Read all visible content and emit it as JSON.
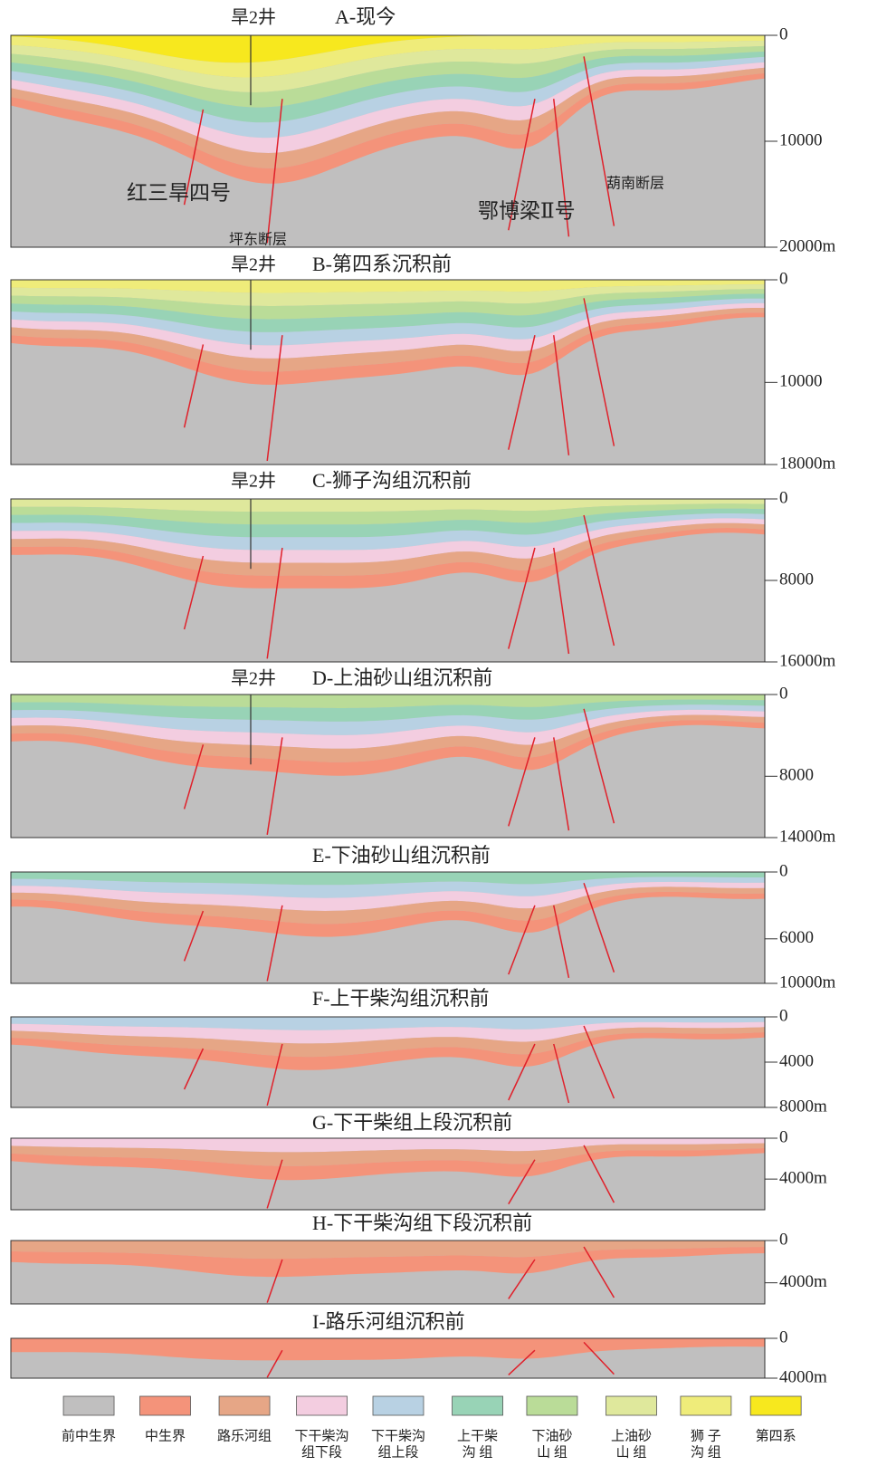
{
  "panels": [
    {
      "title": "A-现今",
      "well": "旱2井",
      "depth_range": [
        0,
        20000
      ],
      "depth_ticks": [
        0,
        10000,
        {
          "value": 20000,
          "label": "20000m"
        }
      ],
      "labels": [
        "红三旱四号",
        "坪东断层",
        "鄂博梁Ⅱ号",
        "葫南断层"
      ]
    },
    {
      "title": "B-第四系沉积前",
      "well": "旱2井",
      "depth_range": [
        0,
        18000
      ],
      "depth_ticks": [
        0,
        10000,
        {
          "value": 18000,
          "label": "18000m"
        }
      ]
    },
    {
      "title": "C-狮子沟组沉积前",
      "well": "旱2井",
      "depth_range": [
        0,
        16000
      ],
      "depth_ticks": [
        0,
        8000,
        {
          "value": 16000,
          "label": "16000m"
        }
      ]
    },
    {
      "title": "D-上油砂山组沉积前",
      "well": "旱2井",
      "depth_range": [
        0,
        14000
      ],
      "depth_ticks": [
        0,
        8000,
        {
          "value": 14000,
          "label": "14000m"
        }
      ]
    },
    {
      "title": "E-下油砂山组沉积前",
      "depth_range": [
        0,
        10000
      ],
      "depth_ticks": [
        0,
        6000,
        {
          "value": 10000,
          "label": "10000m"
        }
      ]
    },
    {
      "title": "F-上干柴沟组沉积前",
      "depth_range": [
        0,
        8000
      ],
      "depth_ticks": [
        0,
        4000,
        {
          "value": 8000,
          "label": "8000m"
        }
      ]
    },
    {
      "title": "G-下干柴组上段沉积前",
      "depth_range": [
        0,
        7000
      ],
      "depth_ticks": [
        0,
        {
          "value": 4000,
          "label": "4000m"
        }
      ]
    },
    {
      "title": "H-下干柴沟组下段沉积前",
      "depth_range": [
        0,
        6000
      ],
      "depth_ticks": [
        0,
        {
          "value": 4000,
          "label": "4000m"
        }
      ]
    },
    {
      "title": "I-路乐河组沉积前",
      "depth_range": [
        0,
        4000
      ],
      "depth_ticks": [
        0,
        {
          "value": 4000,
          "label": "4000m"
        }
      ]
    }
  ],
  "legend": [
    {
      "name": [
        "前中生界"
      ],
      "color": "#c0bfbf"
    },
    {
      "name": [
        "中生界"
      ],
      "color": "#f4937a"
    },
    {
      "name": [
        "路乐河组"
      ],
      "color": "#e6a686"
    },
    {
      "name": [
        "下干柴沟",
        "组下段"
      ],
      "color": "#f3cde0"
    },
    {
      "name": [
        "下干柴沟",
        "组上段"
      ],
      "color": "#b8d1e3"
    },
    {
      "name": [
        "上干柴",
        "沟 组"
      ],
      "color": "#98d3b6"
    },
    {
      "name": [
        "下油砂",
        "山 组"
      ],
      "color": "#badc98"
    },
    {
      "name": [
        "上油砂",
        "山 组"
      ],
      "color": "#dfe89c"
    },
    {
      "name": [
        "狮 子",
        "沟 组"
      ],
      "color": "#efec7a"
    },
    {
      "name": [
        "第四系"
      ],
      "color": "#f7e81e"
    }
  ]
}
